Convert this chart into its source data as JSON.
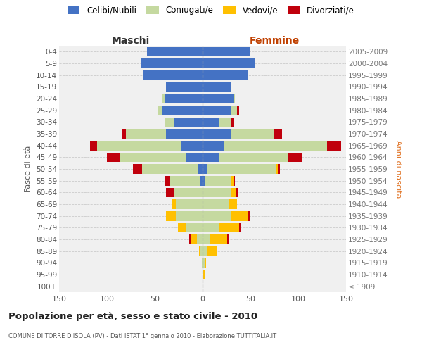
{
  "age_groups": [
    "100+",
    "95-99",
    "90-94",
    "85-89",
    "80-84",
    "75-79",
    "70-74",
    "65-69",
    "60-64",
    "55-59",
    "50-54",
    "45-49",
    "40-44",
    "35-39",
    "30-34",
    "25-29",
    "20-24",
    "15-19",
    "10-14",
    "5-9",
    "0-4"
  ],
  "birth_years": [
    "≤ 1909",
    "1910-1914",
    "1915-1919",
    "1920-1924",
    "1925-1929",
    "1930-1934",
    "1935-1939",
    "1940-1944",
    "1945-1949",
    "1950-1954",
    "1955-1959",
    "1960-1964",
    "1965-1969",
    "1970-1974",
    "1975-1979",
    "1980-1984",
    "1985-1989",
    "1990-1994",
    "1995-1999",
    "2000-2004",
    "2005-2009"
  ],
  "maschi": {
    "celibi": [
      0,
      0,
      0,
      0,
      0,
      0,
      0,
      0,
      0,
      2,
      5,
      18,
      22,
      38,
      30,
      42,
      40,
      38,
      62,
      65,
      58
    ],
    "coniugati": [
      0,
      0,
      1,
      2,
      6,
      18,
      28,
      28,
      30,
      32,
      58,
      68,
      88,
      42,
      10,
      5,
      2,
      0,
      0,
      0,
      0
    ],
    "vedovi": [
      0,
      0,
      0,
      2,
      6,
      8,
      10,
      4,
      0,
      0,
      0,
      0,
      0,
      0,
      0,
      0,
      0,
      0,
      0,
      0,
      0
    ],
    "divorziati": [
      0,
      0,
      0,
      0,
      2,
      0,
      0,
      0,
      8,
      5,
      10,
      14,
      8,
      4,
      0,
      0,
      0,
      0,
      0,
      0,
      0
    ]
  },
  "femmine": {
    "nubili": [
      0,
      0,
      0,
      0,
      0,
      0,
      0,
      0,
      0,
      2,
      5,
      18,
      22,
      30,
      18,
      30,
      32,
      30,
      48,
      55,
      50
    ],
    "coniugate": [
      0,
      1,
      2,
      5,
      8,
      18,
      30,
      28,
      30,
      28,
      72,
      72,
      108,
      45,
      12,
      6,
      2,
      0,
      0,
      0,
      0
    ],
    "vedove": [
      0,
      1,
      2,
      10,
      18,
      20,
      18,
      8,
      5,
      2,
      2,
      0,
      0,
      0,
      0,
      0,
      0,
      0,
      0,
      0,
      0
    ],
    "divorziate": [
      0,
      0,
      0,
      0,
      2,
      2,
      2,
      0,
      2,
      2,
      2,
      14,
      15,
      8,
      2,
      2,
      0,
      0,
      0,
      0,
      0
    ]
  },
  "colors": {
    "celibe": "#4472C4",
    "coniugato": "#c5d9a0",
    "vedovo": "#ffc000",
    "divorziato": "#c0000c"
  },
  "xlim": 150,
  "title": "Popolazione per età, sesso e stato civile - 2010",
  "subtitle": "COMUNE DI TORRE D'ISOLA (PV) - Dati ISTAT 1° gennaio 2010 - Elaborazione TUTTITALIA.IT",
  "ylabel_left": "Fasce di età",
  "ylabel_right": "Anni di nascita",
  "xlabel_left": "Maschi",
  "xlabel_right": "Femmine",
  "bg_color": "#f0f0f0",
  "grid_color": "#cccccc"
}
